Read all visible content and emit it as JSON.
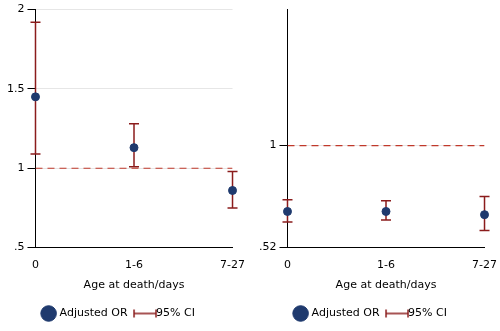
{
  "chart_data": [
    {
      "type": "scatter",
      "categories": [
        "0",
        "1-6",
        "7-27"
      ],
      "x_label": "Age at death/days",
      "series": [
        {
          "name": "Adjusted OR",
          "color": "#1f3a6e",
          "marker": "circle",
          "values": [
            1.45,
            1.13,
            0.86
          ]
        },
        {
          "name": "95% CI",
          "color": "#8b1c1c",
          "type": "errorbar",
          "lower": [
            1.09,
            1.01,
            0.75
          ],
          "upper": [
            1.92,
            1.28,
            0.98
          ]
        }
      ],
      "ref_line": {
        "value": 1,
        "color": "#c0392b",
        "line_style": "dashed"
      },
      "ylim": [
        0.5,
        2
      ],
      "yticks": [
        {
          "value": 0.5,
          "label": ".5"
        },
        1,
        1.5,
        2
      ],
      "grid": true,
      "legend": "bottom"
    },
    {
      "type": "scatter",
      "categories": [
        "0",
        "1-6",
        "7-27"
      ],
      "x_label": "Age at death/days",
      "series": [
        {
          "name": "Adjusted OR",
          "color": "#1f3a6e",
          "marker": "circle",
          "values": [
            0.69,
            0.69,
            0.675
          ]
        },
        {
          "name": "95% CI",
          "color": "#8b1c1c",
          "type": "errorbar",
          "lower": [
            0.64,
            0.65,
            0.6
          ],
          "upper": [
            0.745,
            0.74,
            0.76
          ]
        }
      ],
      "ref_line": {
        "value": 1,
        "color": "#c0392b",
        "line_style": "dashed"
      },
      "ylim": [
        0.52,
        1.64
      ],
      "yticks": [
        {
          "value": 0.52,
          "label": ".52"
        },
        1
      ],
      "grid": true,
      "legend": "bottom"
    }
  ]
}
